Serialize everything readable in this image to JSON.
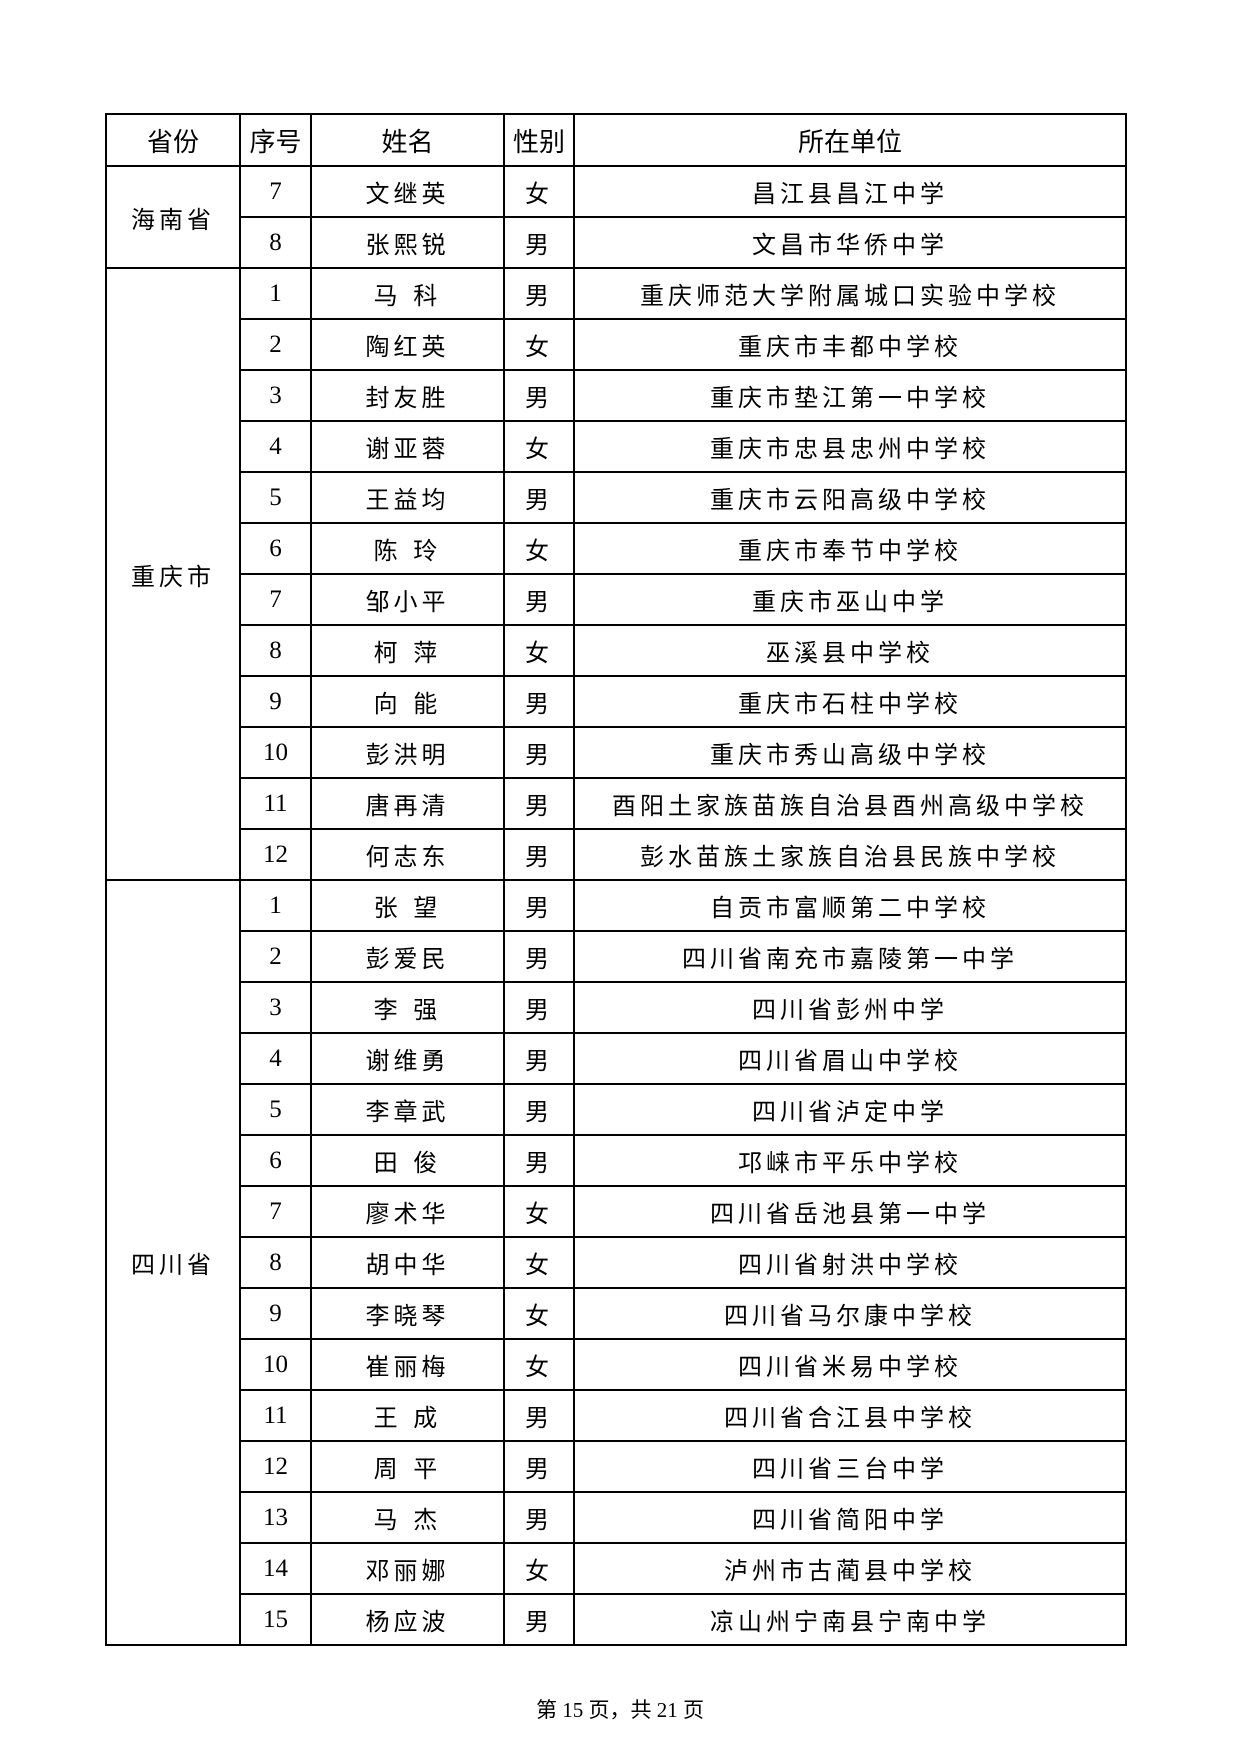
{
  "headers": [
    "省份",
    "序号",
    "姓名",
    "性别",
    "所在单位"
  ],
  "groups": [
    {
      "province": "海南省",
      "rows": [
        [
          "7",
          "文继英",
          "女",
          "昌江县昌江中学"
        ],
        [
          "8",
          "张熙锐",
          "男",
          "文昌市华侨中学"
        ]
      ]
    },
    {
      "province": "重庆市",
      "rows": [
        [
          "1",
          "马 科",
          "男",
          "重庆师范大学附属城口实验中学校"
        ],
        [
          "2",
          "陶红英",
          "女",
          "重庆市丰都中学校"
        ],
        [
          "3",
          "封友胜",
          "男",
          "重庆市垫江第一中学校"
        ],
        [
          "4",
          "谢亚蓉",
          "女",
          "重庆市忠县忠州中学校"
        ],
        [
          "5",
          "王益均",
          "男",
          "重庆市云阳高级中学校"
        ],
        [
          "6",
          "陈 玲",
          "女",
          "重庆市奉节中学校"
        ],
        [
          "7",
          "邹小平",
          "男",
          "重庆市巫山中学"
        ],
        [
          "8",
          "柯 萍",
          "女",
          "巫溪县中学校"
        ],
        [
          "9",
          "向 能",
          "男",
          "重庆市石柱中学校"
        ],
        [
          "10",
          "彭洪明",
          "男",
          "重庆市秀山高级中学校"
        ],
        [
          "11",
          "唐再清",
          "男",
          "酉阳土家族苗族自治县酉州高级中学校"
        ],
        [
          "12",
          "何志东",
          "男",
          "彭水苗族土家族自治县民族中学校"
        ]
      ]
    },
    {
      "province": "四川省",
      "rows": [
        [
          "1",
          "张 望",
          "男",
          "自贡市富顺第二中学校"
        ],
        [
          "2",
          "彭爱民",
          "男",
          "四川省南充市嘉陵第一中学"
        ],
        [
          "3",
          "李 强",
          "男",
          "四川省彭州中学"
        ],
        [
          "4",
          "谢维勇",
          "男",
          "四川省眉山中学校"
        ],
        [
          "5",
          "李章武",
          "男",
          "四川省泸定中学"
        ],
        [
          "6",
          "田 俊",
          "男",
          "邛崃市平乐中学校"
        ],
        [
          "7",
          "廖术华",
          "女",
          "四川省岳池县第一中学"
        ],
        [
          "8",
          "胡中华",
          "女",
          "四川省射洪中学校"
        ],
        [
          "9",
          "李晓琴",
          "女",
          "四川省马尔康中学校"
        ],
        [
          "10",
          "崔丽梅",
          "女",
          "四川省米易中学校"
        ],
        [
          "11",
          "王 成",
          "男",
          "四川省合江县中学校"
        ],
        [
          "12",
          "周 平",
          "男",
          "四川省三台中学"
        ],
        [
          "13",
          "马 杰",
          "男",
          "四川省简阳中学"
        ],
        [
          "14",
          "邓丽娜",
          "女",
          "泸州市古蔺县中学校"
        ],
        [
          "15",
          "杨应波",
          "男",
          "凉山州宁南县宁南中学"
        ]
      ]
    }
  ],
  "footer": "第 15 页，共 21 页"
}
